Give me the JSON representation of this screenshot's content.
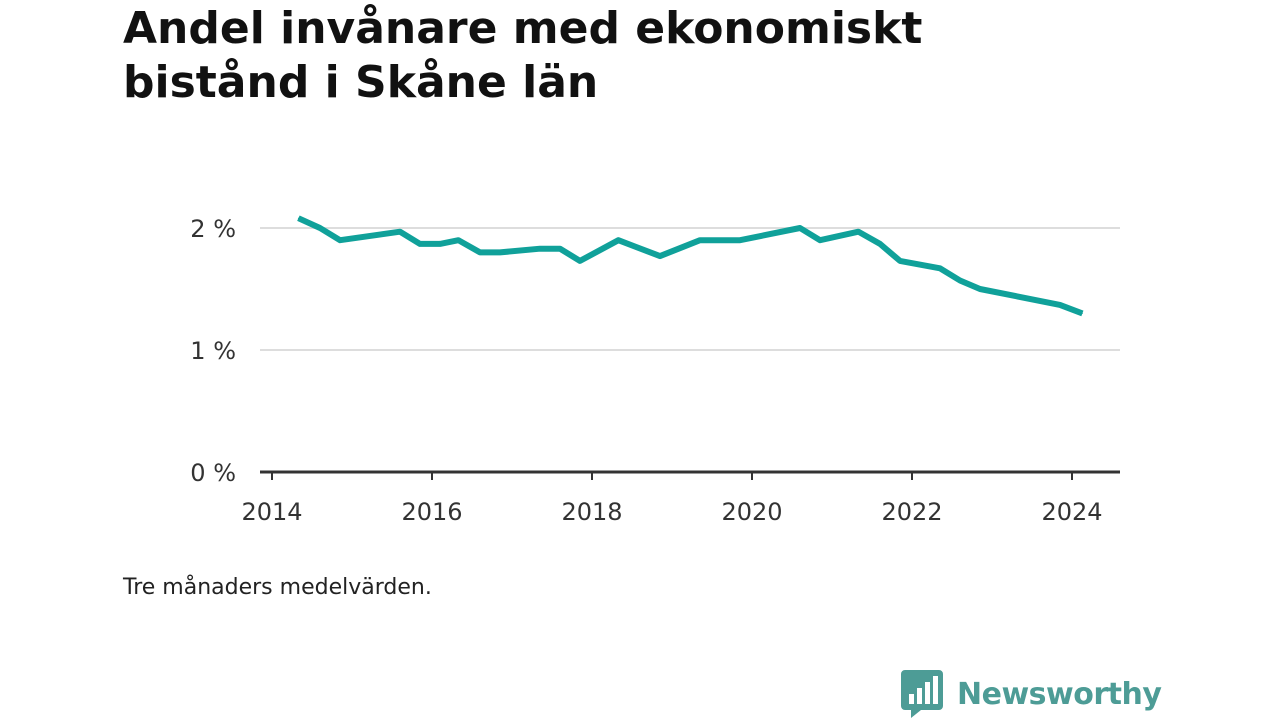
{
  "title": "Andel invånare med ekonomiskt bistånd i Skåne län",
  "note": "Tre månaders medelvärden.",
  "brand": {
    "name": "Newsworthy",
    "color": "#4d9c96"
  },
  "chart_data": {
    "type": "line",
    "title": "Andel invånare med ekonomiskt bistånd i Skåne län",
    "xlabel": "",
    "ylabel": "",
    "xlim": [
      2014,
      2024.6
    ],
    "ylim": [
      0,
      2
    ],
    "y_ticks": [
      {
        "value": 0,
        "label": "0 %"
      },
      {
        "value": 1,
        "label": "1 %"
      },
      {
        "value": 2,
        "label": "2 %"
      }
    ],
    "x_ticks": [
      {
        "value": 2014,
        "label": "2014"
      },
      {
        "value": 2016,
        "label": "2016"
      },
      {
        "value": 2018,
        "label": "2018"
      },
      {
        "value": 2020,
        "label": "2020"
      },
      {
        "value": 2022,
        "label": "2022"
      },
      {
        "value": 2024,
        "label": "2024"
      }
    ],
    "grid": true,
    "line_color": "#10a19a",
    "series": [
      {
        "x": [
          2014.33,
          2014.6,
          2014.85,
          2015.6,
          2015.85,
          2016.1,
          2016.33,
          2016.6,
          2016.85,
          2017.35,
          2017.6,
          2017.85,
          2018.33,
          2018.85,
          2019.35,
          2019.85,
          2020.6,
          2020.85,
          2021.33,
          2021.6,
          2021.85,
          2022.35,
          2022.6,
          2022.85,
          2023.85,
          2024.13
        ],
        "y": [
          2.08,
          2.0,
          1.9,
          1.97,
          1.87,
          1.87,
          1.9,
          1.8,
          1.8,
          1.83,
          1.83,
          1.73,
          1.9,
          1.77,
          1.9,
          1.9,
          2.0,
          1.9,
          1.97,
          1.87,
          1.73,
          1.67,
          1.57,
          1.5,
          1.37,
          1.3
        ]
      }
    ]
  }
}
